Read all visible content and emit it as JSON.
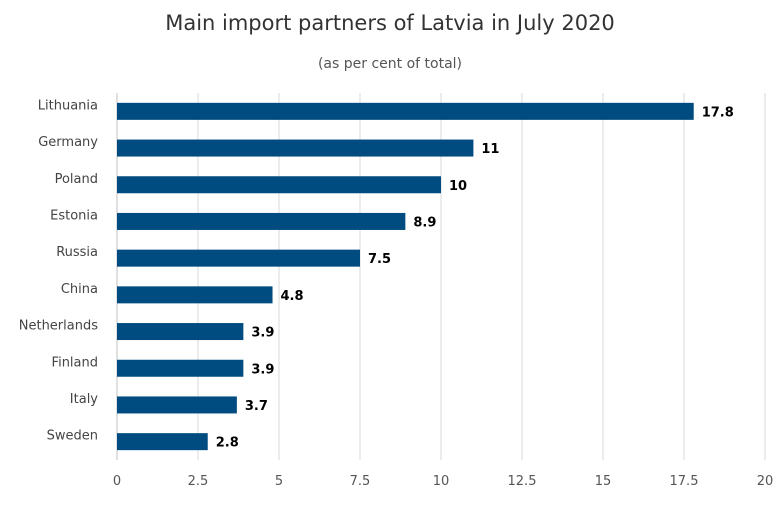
{
  "chart_data": {
    "type": "bar",
    "orientation": "horizontal",
    "title": "Main import partners of Latvia in July 2020",
    "subtitle": "(as per cent of total)",
    "categories": [
      "Lithuania",
      "Germany",
      "Poland",
      "Estonia",
      "Russia",
      "China",
      "Netherlands",
      "Finland",
      "Italy",
      "Sweden"
    ],
    "values": [
      17.8,
      11,
      10,
      8.9,
      7.5,
      4.8,
      3.9,
      3.9,
      3.7,
      2.8
    ],
    "value_labels": [
      "17.8",
      "11",
      "10",
      "8.9",
      "7.5",
      "4.8",
      "3.9",
      "3.9",
      "3.7",
      "2.8"
    ],
    "xlim": [
      0,
      20
    ],
    "x_ticks": [
      0,
      2.5,
      5,
      7.5,
      10,
      12.5,
      15,
      17.5,
      20
    ],
    "x_tick_labels": [
      "0",
      "2.5",
      "5",
      "7.5",
      "10",
      "12.5",
      "15",
      "17.5",
      "20"
    ],
    "grid": true,
    "legend": "none",
    "bar_color": "#004b80"
  }
}
